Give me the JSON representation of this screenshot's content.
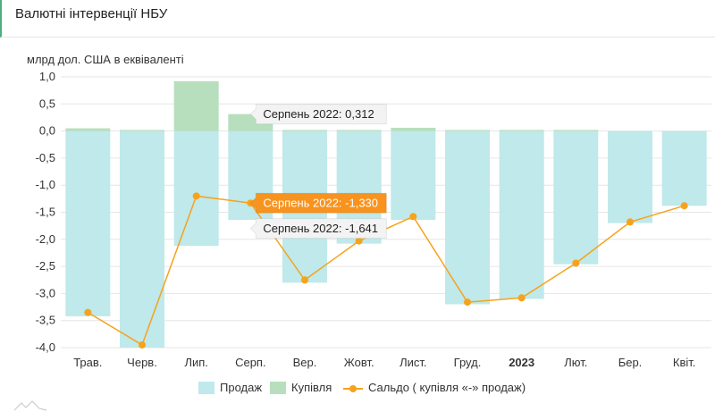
{
  "header": {
    "title": "Валютні інтервенції НБУ"
  },
  "unit_label": "млрд дол. США в еквіваленті",
  "colors": {
    "sales": "#bfe9ea",
    "purchases": "#b7dfbd",
    "balance": "#f7a21b",
    "tooltip_bg": "#f3f3f3",
    "tooltip_active": "#f7931e",
    "grid": "#e6e6e6"
  },
  "legend": {
    "sales": "Продаж",
    "purchases": "Купівля",
    "balance": "Сальдо ( купівля «-» продаж)"
  },
  "tooltips": {
    "purchases": "Серпень 2022: 0,312",
    "balance": "Серпень 2022: -1,330",
    "sales": "Серпень 2022: -1,641"
  },
  "chart_data": {
    "type": "bar",
    "categories": [
      "Трав.",
      "Черв.",
      "Лип.",
      "Серп.",
      "Вер.",
      "Жовт.",
      "Лист.",
      "Груд.",
      "2023",
      "Лют.",
      "Бер.",
      "Квіт."
    ],
    "bold_categories": [
      "2023"
    ],
    "ylabel": "млрд дол. США в еквіваленті",
    "ylim": [
      -4.0,
      1.0
    ],
    "yticks": [
      "1,0",
      "0,5",
      "0,0",
      "-0,5",
      "-1,0",
      "-1,5",
      "-2,0",
      "-2,5",
      "-3,0",
      "-3,5",
      "-4,0"
    ],
    "grid": true,
    "series": [
      {
        "name": "Продаж",
        "type": "bar",
        "values": [
          -3.42,
          -4.0,
          -2.12,
          -1.641,
          -2.8,
          -2.08,
          -1.64,
          -3.2,
          -3.1,
          -2.46,
          -1.7,
          -1.38
        ]
      },
      {
        "name": "Купівля",
        "type": "bar",
        "values": [
          0.05,
          0.02,
          0.92,
          0.312,
          0.02,
          0.02,
          0.06,
          0.02,
          0.02,
          0.02,
          0.0,
          0.0
        ]
      },
      {
        "name": "Сальдо ( купівля «-» продаж)",
        "type": "line",
        "values": [
          -3.35,
          -3.95,
          -1.2,
          -1.33,
          -2.75,
          -2.03,
          -1.58,
          -3.16,
          -3.08,
          -2.44,
          -1.68,
          -1.38
        ]
      }
    ]
  }
}
